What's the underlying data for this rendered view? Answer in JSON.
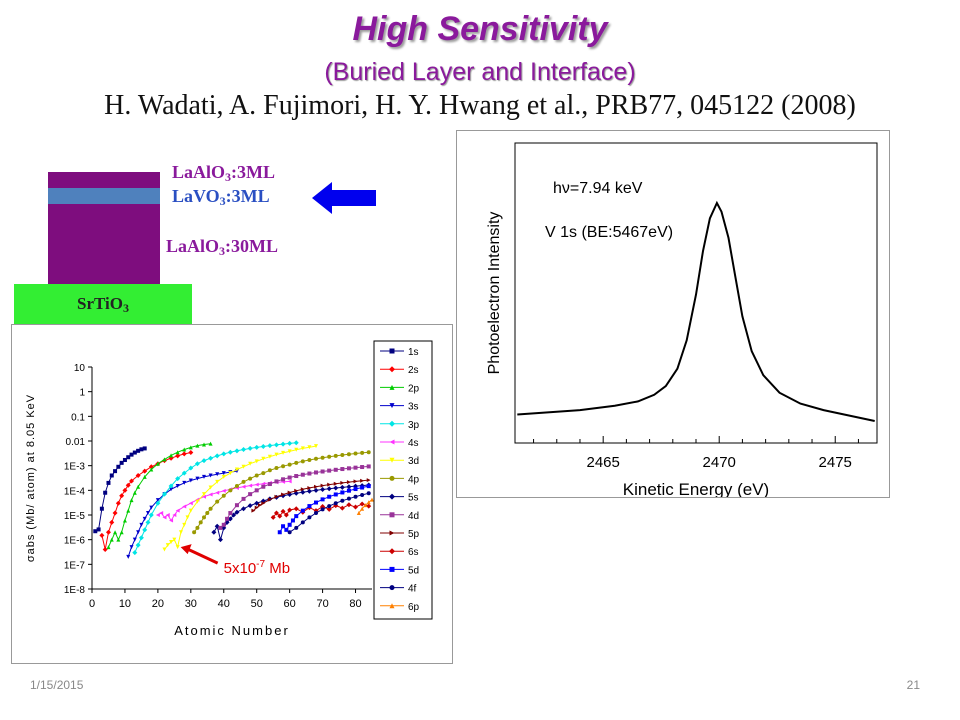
{
  "slide": {
    "title": "High Sensitivity",
    "subtitle": "(Buried Layer and Interface)",
    "citation": "H. Wadati, A. Fujimori, H. Y. Hwang et al., PRB77, 045122 (2008)",
    "date": "1/15/2015",
    "page_number": "21"
  },
  "layers": {
    "top": {
      "name": "LaAlO",
      "sub": "3",
      "suffix": ":3ML"
    },
    "buried": {
      "name": "LaVO",
      "sub": "3",
      "suffix": ":3ML"
    },
    "bottom": {
      "name": "LaAlO",
      "sub": "3",
      "suffix": ":30ML"
    },
    "substrate": {
      "name": "SrTiO",
      "sub": "3"
    },
    "colors": {
      "laalo3": "#7e0d7e",
      "lavo3": "#4f81bd",
      "srtio3": "#33ee33",
      "arrow": "#0000ee"
    }
  },
  "chart_data": [
    {
      "type": "line",
      "annotation_1": "hν=7.94 keV",
      "annotation_2": "V 1s (BE:5467eV)",
      "xlabel": "Kinetic Energy (eV)",
      "ylabel": "Photoelectron Intensity",
      "xlim": [
        2461.2,
        2476.8
      ],
      "xticks": [
        2465,
        2470,
        2475
      ],
      "series": [
        {
          "x": [
            2461.3,
            2464,
            2465.5,
            2466.5,
            2467.2,
            2467.7,
            2468.2,
            2468.6,
            2469.0,
            2469.3,
            2469.6,
            2469.9,
            2470.1,
            2470.4,
            2470.7,
            2471.0,
            2471.4,
            2471.9,
            2472.6,
            2473.5,
            2474.5,
            2476.7
          ],
          "y": [
            0.03,
            0.05,
            0.07,
            0.09,
            0.12,
            0.16,
            0.24,
            0.37,
            0.58,
            0.78,
            0.93,
            1.0,
            0.96,
            0.84,
            0.66,
            0.48,
            0.32,
            0.21,
            0.13,
            0.08,
            0.05,
            0.0
          ]
        }
      ]
    },
    {
      "type": "scatter",
      "xlabel": "Atomic Number",
      "ylabel": "σabs (Mb/ atom) at 8.05 KeV",
      "y_scale": "log",
      "xlim": [
        0,
        85
      ],
      "ylim": [
        1e-08,
        10
      ],
      "xticks": [
        0,
        10,
        20,
        30,
        40,
        50,
        60,
        70,
        80
      ],
      "yticks": [
        {
          "v": 10,
          "label": "10"
        },
        {
          "v": 1,
          "label": "1"
        },
        {
          "v": 0.1,
          "label": "0.1"
        },
        {
          "v": 0.01,
          "label": "0.01"
        },
        {
          "v": 0.001,
          "label": "1E-3"
        },
        {
          "v": 0.0001,
          "label": "1E-4"
        },
        {
          "v": 1e-05,
          "label": "1E-5"
        },
        {
          "v": 1e-06,
          "label": "1E-6"
        },
        {
          "v": 1e-07,
          "label": "1E-7"
        },
        {
          "v": 1e-08,
          "label": "1E-8"
        }
      ],
      "annotation": {
        "text": "5x10",
        "exp": "-7",
        "unit": " Mb",
        "x": 26,
        "y": 5e-07
      },
      "legend": "right",
      "series": [
        {
          "name": "1s",
          "color": "#000080",
          "marker": "square",
          "x": [
            1,
            2,
            3,
            4,
            5,
            6,
            7,
            8,
            9,
            10,
            11,
            12,
            13,
            14,
            15,
            16
          ],
          "y": [
            2.2e-06,
            2.6e-06,
            1.8e-05,
            8e-05,
            0.0002,
            0.0004,
            0.0006,
            0.0009,
            0.0013,
            0.0017,
            0.0022,
            0.0028,
            0.0034,
            0.004,
            0.0046,
            0.005
          ]
        },
        {
          "name": "2s",
          "color": "#ff0000",
          "marker": "diamond",
          "x": [
            3,
            4,
            5,
            6,
            7,
            8,
            9,
            10,
            11,
            12,
            14,
            16,
            18,
            20,
            22,
            24,
            26,
            28,
            30
          ],
          "y": [
            1.5e-06,
            4e-07,
            2e-06,
            5e-06,
            1.2e-05,
            3e-05,
            6e-05,
            0.0001,
            0.00016,
            0.00024,
            0.0004,
            0.0006,
            0.0009,
            0.0012,
            0.0016,
            0.002,
            0.0025,
            0.003,
            0.0034
          ]
        },
        {
          "name": "2p",
          "color": "#00cc00",
          "marker": "triangle",
          "x": [
            5,
            6,
            7,
            8,
            9,
            10,
            11,
            12,
            13,
            14,
            16,
            18,
            20,
            22,
            24,
            26,
            28,
            30,
            32,
            34,
            36
          ],
          "y": [
            5e-07,
            1e-06,
            2e-06,
            1e-06,
            2e-06,
            6e-06,
            1.5e-05,
            4e-05,
            8e-05,
            0.00014,
            0.00035,
            0.0007,
            0.0012,
            0.0018,
            0.0026,
            0.0035,
            0.0045,
            0.0055,
            0.0065,
            0.0072,
            0.0078
          ]
        },
        {
          "name": "3s",
          "color": "#0000cc",
          "marker": "down",
          "x": [
            11,
            12,
            13,
            14,
            15,
            16,
            17,
            18,
            20,
            22,
            24,
            26,
            28,
            30,
            32,
            34,
            36,
            38,
            40,
            42,
            44
          ],
          "y": [
            2e-07,
            5e-07,
            1e-06,
            2e-06,
            4e-06,
            7e-06,
            1.2e-05,
            2e-05,
            4e-05,
            7e-05,
            0.00011,
            0.00015,
            0.0002,
            0.00025,
            0.0003,
            0.00035,
            0.0004,
            0.00045,
            0.0005,
            0.00055,
            0.0006
          ]
        },
        {
          "name": "3p",
          "color": "#00e5e5",
          "marker": "diamond",
          "x": [
            13,
            14,
            15,
            16,
            17,
            18,
            20,
            22,
            24,
            26,
            28,
            30,
            32,
            34,
            36,
            38,
            40,
            42,
            44,
            46,
            48,
            50,
            52,
            54,
            56,
            58,
            60,
            62
          ],
          "y": [
            3e-07,
            6e-07,
            1.2e-06,
            2.5e-06,
            5e-06,
            1e-05,
            3e-05,
            7e-05,
            0.00015,
            0.0003,
            0.0005,
            0.0008,
            0.0012,
            0.0016,
            0.002,
            0.0025,
            0.003,
            0.0035,
            0.004,
            0.0045,
            0.005,
            0.0055,
            0.006,
            0.0065,
            0.007,
            0.0075,
            0.008,
            0.0085
          ]
        },
        {
          "name": "4s",
          "color": "#ff33ff",
          "marker": "left",
          "x": [
            20,
            21,
            22,
            23,
            24,
            25,
            26,
            28,
            30,
            32,
            34,
            36,
            38,
            40,
            42,
            44,
            46,
            48,
            50,
            52,
            54,
            56,
            58,
            60
          ],
          "y": [
            1e-05,
            1.2e-05,
            8e-06,
            1e-05,
            6e-06,
            1e-05,
            1.5e-05,
            2.2e-05,
            3e-05,
            4.2e-05,
            5.5e-05,
            6.8e-05,
            8e-05,
            9.5e-05,
            0.00011,
            0.000125,
            0.00014,
            0.000155,
            0.00017,
            0.000185,
            0.0002,
            0.00021,
            0.00022,
            0.00023
          ]
        },
        {
          "name": "3d",
          "color": "#ffff00",
          "marker": "down",
          "x": [
            22,
            23,
            24,
            25,
            26,
            27,
            28,
            29,
            30,
            32,
            34,
            36,
            38,
            40,
            42,
            44,
            46,
            48,
            50,
            52,
            54,
            56,
            58,
            60,
            62,
            64,
            66,
            68
          ],
          "y": [
            4e-07,
            6e-07,
            8e-07,
            1e-06,
            5e-07,
            2e-06,
            4e-06,
            8e-06,
            1.5e-05,
            3.5e-05,
            7e-05,
            0.00013,
            0.00022,
            0.00035,
            0.0005,
            0.0007,
            0.0009,
            0.0012,
            0.0015,
            0.0019,
            0.0023,
            0.0028,
            0.0033,
            0.0038,
            0.0044,
            0.005,
            0.0056,
            0.0062
          ]
        },
        {
          "name": "4p",
          "color": "#999900",
          "marker": "circle",
          "x": [
            31,
            32,
            33,
            34,
            35,
            36,
            38,
            40,
            42,
            44,
            46,
            48,
            50,
            52,
            54,
            56,
            58,
            60,
            62,
            64,
            66,
            68,
            70,
            72,
            74,
            76,
            78,
            80,
            82,
            84
          ],
          "y": [
            2e-06,
            3e-06,
            5e-06,
            8e-06,
            1.2e-05,
            1.8e-05,
            3.5e-05,
            6e-05,
            0.0001,
            0.00015,
            0.00022,
            0.0003,
            0.0004,
            0.0005,
            0.00065,
            0.0008,
            0.00095,
            0.0011,
            0.0013,
            0.0015,
            0.0017,
            0.0019,
            0.0021,
            0.0023,
            0.0025,
            0.0027,
            0.0029,
            0.0031,
            0.0033,
            0.0035
          ]
        },
        {
          "name": "5s",
          "color": "#000080",
          "marker": "diamond",
          "x": [
            37,
            38,
            39,
            40,
            41,
            42,
            43,
            44,
            46,
            48,
            50,
            52,
            54,
            56,
            58,
            60,
            62,
            64,
            66,
            68,
            70,
            72,
            74,
            76,
            78,
            80,
            82,
            84
          ],
          "y": [
            2e-06,
            3.5e-06,
            1e-06,
            3e-06,
            5e-06,
            7e-06,
            1e-05,
            1.3e-05,
            1.8e-05,
            2.4e-05,
            3e-05,
            3.7e-05,
            4.5e-05,
            5.2e-05,
            6e-05,
            6.8e-05,
            7.6e-05,
            8.4e-05,
            9.2e-05,
            0.0001,
            0.000108,
            0.000116,
            0.000124,
            0.000132,
            0.00014,
            0.000148,
            0.000156,
            0.000164
          ]
        },
        {
          "name": "4d",
          "color": "#993399",
          "marker": "square",
          "x": [
            39,
            40,
            41,
            42,
            44,
            46,
            48,
            50,
            52,
            54,
            56,
            58,
            60,
            62,
            64,
            66,
            68,
            70,
            72,
            74,
            76,
            78,
            80,
            82,
            84
          ],
          "y": [
            3e-06,
            4e-06,
            7e-06,
            1.2e-05,
            2.5e-05,
            4.5e-05,
            7e-05,
            0.0001,
            0.00014,
            0.00018,
            0.00023,
            0.00028,
            0.00033,
            0.00038,
            0.00043,
            0.00048,
            0.00053,
            0.00058,
            0.00063,
            0.00068,
            0.00073,
            0.00078,
            0.00083,
            0.00088,
            0.00093
          ]
        },
        {
          "name": "5p",
          "color": "#800000",
          "marker": "right",
          "x": [
            49,
            50,
            51,
            52,
            54,
            56,
            58,
            60,
            62,
            64,
            66,
            68,
            70,
            72,
            74,
            76,
            78,
            80,
            82,
            84
          ],
          "y": [
            1.5e-05,
            2e-05,
            2.5e-05,
            3e-05,
            4.2e-05,
            5.5e-05,
            6.8e-05,
            8.2e-05,
            9.6e-05,
            0.00011,
            0.000125,
            0.00014,
            0.000155,
            0.00017,
            0.000185,
            0.0002,
            0.000215,
            0.00023,
            0.000245,
            0.00026
          ]
        },
        {
          "name": "6s",
          "color": "#cc0000",
          "marker": "diamond",
          "x": [
            55,
            56,
            57,
            58,
            59,
            60,
            62,
            64,
            66,
            68,
            70,
            72,
            74,
            76,
            78,
            80,
            82,
            84
          ],
          "y": [
            8e-06,
            1.2e-05,
            9e-06,
            1.4e-05,
            1e-05,
            1.6e-05,
            1.8e-05,
            1.3e-05,
            2e-05,
            1.5e-05,
            2.2e-05,
            1.7e-05,
            2.4e-05,
            1.9e-05,
            2.6e-05,
            2.1e-05,
            2.8e-05,
            2.3e-05
          ]
        },
        {
          "name": "5d",
          "color": "#0000ff",
          "marker": "square",
          "x": [
            57,
            58,
            59,
            60,
            61,
            62,
            64,
            66,
            68,
            70,
            72,
            74,
            76,
            78,
            80,
            82,
            84
          ],
          "y": [
            2e-06,
            3.5e-06,
            2.5e-06,
            4e-06,
            6e-06,
            9e-06,
            1.5e-05,
            2.3e-05,
            3.2e-05,
            4.3e-05,
            5.5e-05,
            6.8e-05,
            8.2e-05,
            9.7e-05,
            0.000113,
            0.00013,
            0.000148
          ]
        },
        {
          "name": "4f",
          "color": "#000080",
          "marker": "circle",
          "x": [
            60,
            62,
            64,
            66,
            68,
            70,
            72,
            74,
            76,
            78,
            80,
            82,
            84
          ],
          "y": [
            2e-06,
            3e-06,
            5e-06,
            8e-06,
            1.2e-05,
            1.7e-05,
            2.3e-05,
            3e-05,
            3.8e-05,
            4.6e-05,
            5.5e-05,
            6.5e-05,
            7.6e-05
          ]
        },
        {
          "name": "6p",
          "color": "#ff8000",
          "marker": "triangle",
          "x": [
            81,
            82,
            83,
            84,
            85
          ],
          "y": [
            1.2e-05,
            1.8e-05,
            2.5e-05,
            3.3e-05,
            4.2e-05
          ]
        }
      ]
    }
  ]
}
